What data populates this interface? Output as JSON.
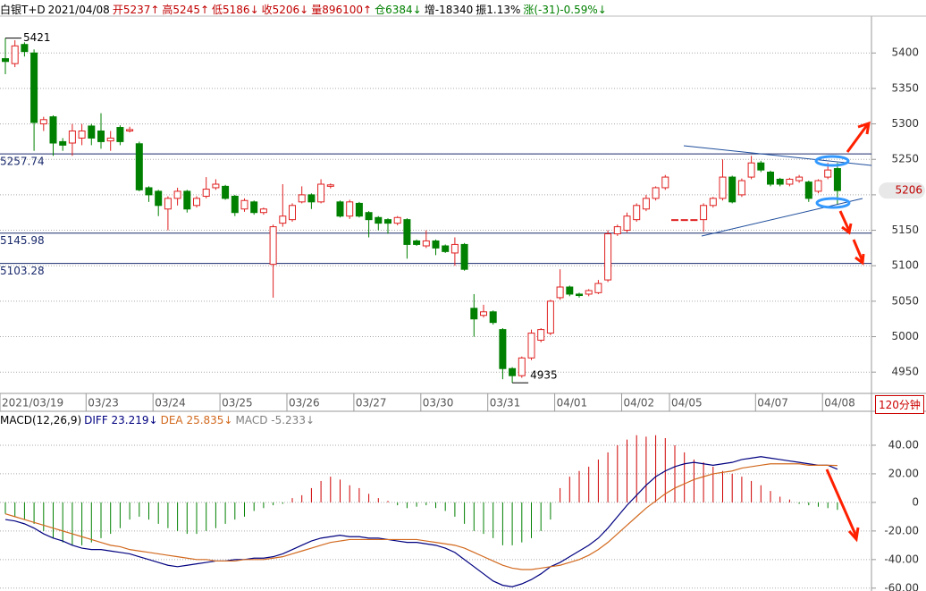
{
  "header": [
    {
      "text": "白银T+D",
      "color": "#000000"
    },
    {
      "text": "2021/04/08",
      "color": "#000000"
    },
    {
      "text": "开5237↑",
      "color": "#c00000"
    },
    {
      "text": "高5245↑",
      "color": "#c00000"
    },
    {
      "text": "低5186↓",
      "color": "#c00000"
    },
    {
      "text": "收5206↓",
      "color": "#c00000"
    },
    {
      "text": "量896100↑",
      "color": "#c00000"
    },
    {
      "text": "仓6384↓",
      "color": "#008000"
    },
    {
      "text": "增-18340",
      "color": "#000000"
    },
    {
      "text": "振1.13%",
      "color": "#000000"
    },
    {
      "text": "涨(-31)-0.59%↓",
      "color": "#008000"
    }
  ],
  "macd_header": [
    {
      "text": "MACD(12,26,9)",
      "color": "#000000"
    },
    {
      "text": "DIFF 23.219↓",
      "color": "#000080"
    },
    {
      "text": "DEA 25.835↓",
      "color": "#d2691e"
    },
    {
      "text": "MACD -5.233↓",
      "color": "#808080"
    }
  ],
  "period": "120分钟",
  "chart_data": [
    {
      "type": "candlestick",
      "up_color": "#e02020",
      "down_color": "#008000",
      "categories": [
        "2021/03/19",
        null,
        null,
        null,
        null,
        null,
        null,
        null,
        null,
        "03/23",
        null,
        null,
        null,
        null,
        null,
        null,
        "03/24",
        null,
        null,
        null,
        null,
        null,
        null,
        "03/25",
        null,
        null,
        null,
        null,
        null,
        null,
        "03/26",
        null,
        null,
        null,
        null,
        null,
        null,
        "03/27",
        null,
        null,
        null,
        null,
        null,
        null,
        "03/30",
        null,
        null,
        null,
        null,
        null,
        null,
        "03/31",
        null,
        null,
        null,
        null,
        null,
        null,
        "04/01",
        null,
        null,
        null,
        null,
        null,
        null,
        "04/02",
        null,
        null,
        null,
        null,
        "04/05",
        null,
        null,
        null,
        null,
        null,
        null,
        null,
        null,
        "04/07",
        null,
        null,
        null,
        null,
        null,
        null,
        "04/08",
        null
      ],
      "open": [
        5392,
        5385,
        5412,
        5400,
        5300,
        5310,
        5275,
        5273,
        5280,
        5297,
        5290,
        5276,
        5295,
        5290,
        5272,
        5210,
        5205,
        5180,
        5195,
        5205,
        5185,
        5198,
        5210,
        5212,
        5198,
        5180,
        5190,
        5175,
        5102,
        5160,
        5165,
        5190,
        5200,
        5190,
        5212,
        5190,
        5170,
        5188,
        5175,
        5168,
        5165,
        5160,
        5165,
        5135,
        5128,
        5135,
        5128,
        5118,
        5130,
        5040,
        5030,
        5035,
        5010,
        4955,
        4945,
        4970,
        4995,
        5005,
        5055,
        5070,
        5060,
        5060,
        5062,
        5080,
        5145,
        5150,
        5165,
        5180,
        5195,
        5210,
        5165,
        5165,
        5165,
        5165,
        5185,
        5195,
        5225,
        5200,
        5225,
        5245,
        5232,
        5222,
        5215,
        5220,
        5218,
        5205,
        5225,
        5237
      ],
      "high": [
        5421,
        5418,
        5415,
        5405,
        5310,
        5312,
        5280,
        5300,
        5300,
        5300,
        5315,
        5290,
        5298,
        5296,
        5275,
        5212,
        5207,
        5198,
        5210,
        5207,
        5198,
        5225,
        5222,
        5214,
        5200,
        5195,
        5192,
        5182,
        5158,
        5215,
        5188,
        5212,
        5202,
        5222,
        5216,
        5192,
        5193,
        5190,
        5177,
        5170,
        5167,
        5170,
        5167,
        5137,
        5150,
        5137,
        5130,
        5140,
        5132,
        5060,
        5045,
        5037,
        5012,
        4957,
        4972,
        5010,
        5012,
        5052,
        5095,
        5072,
        5062,
        5067,
        5080,
        5150,
        5158,
        5175,
        5188,
        5200,
        5212,
        5228,
        5165,
        5165,
        5165,
        5188,
        5197,
        5250,
        5227,
        5223,
        5255,
        5248,
        5234,
        5224,
        5224,
        5228,
        5220,
        5222,
        5245,
        5245
      ],
      "low": [
        5370,
        5380,
        5395,
        5262,
        5290,
        5255,
        5262,
        5255,
        5270,
        5270,
        5265,
        5262,
        5270,
        5288,
        5205,
        5190,
        5170,
        5150,
        5185,
        5175,
        5182,
        5195,
        5207,
        5193,
        5170,
        5176,
        5172,
        5172,
        5055,
        5155,
        5162,
        5188,
        5180,
        5188,
        5209,
        5168,
        5166,
        5168,
        5140,
        5150,
        5145,
        5157,
        5110,
        5128,
        5125,
        5115,
        5118,
        5100,
        5093,
        5000,
        5027,
        5017,
        4940,
        4935,
        4942,
        4967,
        4992,
        5002,
        5052,
        5057,
        5055,
        5057,
        5060,
        5077,
        5142,
        5147,
        5162,
        5177,
        5192,
        5207,
        5165,
        5165,
        5165,
        5148,
        5182,
        5192,
        5188,
        5197,
        5222,
        5232,
        5212,
        5212,
        5212,
        5217,
        5190,
        5202,
        5222,
        5186
      ],
      "close": [
        5388,
        5410,
        5402,
        5302,
        5306,
        5273,
        5270,
        5290,
        5290,
        5280,
        5275,
        5280,
        5275,
        5292,
        5207,
        5200,
        5185,
        5195,
        5205,
        5180,
        5195,
        5208,
        5215,
        5195,
        5175,
        5192,
        5175,
        5180,
        5155,
        5170,
        5185,
        5200,
        5190,
        5215,
        5214,
        5170,
        5190,
        5170,
        5165,
        5160,
        5160,
        5168,
        5130,
        5130,
        5135,
        5125,
        5120,
        5130,
        5095,
        5025,
        5035,
        5020,
        4955,
        4945,
        4970,
        5005,
        5010,
        5050,
        5070,
        5060,
        5058,
        5065,
        5075,
        5145,
        5155,
        5170,
        5185,
        5195,
        5210,
        5225,
        5165,
        5165,
        5165,
        5185,
        5195,
        5225,
        5190,
        5220,
        5245,
        5235,
        5215,
        5215,
        5222,
        5225,
        5195,
        5220,
        5235,
        5206
      ],
      "ylim": [
        4920,
        5452
      ],
      "yticks": [
        4950,
        5000,
        5050,
        5100,
        5150,
        5200,
        5250,
        5300,
        5350,
        5400
      ],
      "grid": true,
      "ref_lines": [
        {
          "value": 5257.74,
          "label": "5257.74"
        },
        {
          "value": 5145.98,
          "label": "5145.98"
        },
        {
          "value": 5103.28,
          "label": "5103.28"
        }
      ],
      "high_mark": {
        "index": 0,
        "value": 5421
      },
      "low_mark": {
        "index": 53,
        "value": 4935
      },
      "last_price": 5206
    },
    {
      "type": "macd",
      "histogram": [
        -8,
        -10,
        -12,
        -15,
        -20,
        -25,
        -28,
        -30,
        -30,
        -28,
        -25,
        -22,
        -18,
        -12,
        -10,
        -12,
        -15,
        -18,
        -20,
        -22,
        -22,
        -20,
        -18,
        -15,
        -12,
        -10,
        -6,
        -4,
        -2,
        -1,
        3,
        5,
        10,
        15,
        18,
        16,
        12,
        10,
        6,
        3,
        1,
        -2,
        -4,
        -3,
        -2,
        -4,
        -6,
        -10,
        -15,
        -20,
        -22,
        -25,
        -30,
        -30,
        -28,
        -25,
        -20,
        -12,
        10,
        18,
        22,
        25,
        30,
        35,
        40,
        44,
        47,
        46,
        47,
        45,
        40,
        35,
        30,
        28,
        25,
        22,
        20,
        18,
        15,
        12,
        8,
        4,
        2,
        -1,
        -2,
        -3,
        -4,
        -5.233
      ],
      "up_color": "#d00000",
      "down_color": "#008000",
      "series": [
        {
          "name": "DIFF",
          "color": "#000080",
          "values": [
            -12,
            -13,
            -15,
            -18,
            -22,
            -25,
            -27,
            -30,
            -32,
            -33,
            -33,
            -34,
            -35,
            -36,
            -38,
            -40,
            -42,
            -44,
            -45,
            -44,
            -43,
            -42,
            -41,
            -41,
            -40,
            -40,
            -39,
            -39,
            -38,
            -36,
            -33,
            -30,
            -27,
            -25,
            -24,
            -23,
            -24,
            -24,
            -25,
            -25,
            -26,
            -27,
            -28,
            -28,
            -29,
            -30,
            -32,
            -35,
            -40,
            -45,
            -50,
            -55,
            -58,
            -59,
            -57,
            -54,
            -50,
            -45,
            -42,
            -38,
            -34,
            -30,
            -25,
            -18,
            -10,
            -2,
            5,
            12,
            18,
            22,
            25,
            27,
            28,
            27,
            26,
            27,
            28,
            30,
            31,
            32,
            31,
            30,
            29,
            28,
            27,
            26,
            26,
            23.219
          ]
        },
        {
          "name": "DEA",
          "color": "#d2691e",
          "values": [
            -8,
            -10,
            -12,
            -14,
            -16,
            -18,
            -20,
            -22,
            -24,
            -26,
            -28,
            -30,
            -31,
            -33,
            -34,
            -35,
            -36,
            -37,
            -38,
            -39,
            -40,
            -40,
            -41,
            -41,
            -41,
            -40,
            -40,
            -40,
            -39,
            -38,
            -36,
            -34,
            -32,
            -30,
            -28,
            -27,
            -26,
            -26,
            -26,
            -26,
            -26,
            -26,
            -26,
            -26,
            -27,
            -28,
            -29,
            -30,
            -32,
            -35,
            -38,
            -41,
            -44,
            -46,
            -47,
            -47,
            -46,
            -45,
            -44,
            -42,
            -40,
            -37,
            -33,
            -28,
            -22,
            -16,
            -10,
            -4,
            1,
            6,
            10,
            13,
            16,
            18,
            20,
            21,
            22,
            24,
            25,
            26,
            27,
            27,
            27,
            27,
            26,
            26,
            26,
            25.835
          ]
        }
      ],
      "ylim": [
        -62,
        62.5
      ],
      "yticks": [
        {
          "value": -60,
          "label": "-60.00"
        },
        {
          "value": -40,
          "label": "-40.00"
        },
        {
          "value": -20,
          "label": "-20.00"
        },
        0,
        {
          "value": 20,
          "label": "20.00"
        },
        {
          "value": 40,
          "label": "40.00"
        }
      ],
      "grid": true
    }
  ]
}
